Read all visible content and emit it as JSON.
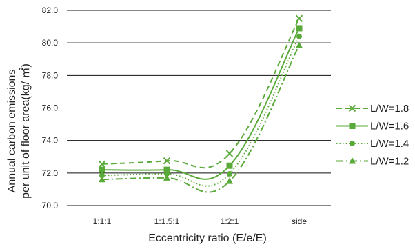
{
  "chart_data": {
    "type": "line",
    "categories": [
      "1:1:1",
      "1:1.5:1",
      "1:2:1",
      "side"
    ],
    "xlabel": "Eccentricity ratio (E/e/E)",
    "ylabel_lines": [
      "Annual carbon emissions",
      "per unit of floor area(kg/ ㎡)"
    ],
    "ylim": [
      70.0,
      82.0
    ],
    "yticks": [
      "70.0",
      "72.0",
      "74.0",
      "76.0",
      "78.0",
      "80.0",
      "82.0"
    ],
    "grid": "horizontal",
    "legend_position": "right",
    "color": "#5aaa3a",
    "series": [
      {
        "name": "L/W=1.8",
        "marker": "x",
        "dash": "dashed",
        "values": [
          72.55,
          72.75,
          73.2,
          81.5
        ]
      },
      {
        "name": "L/W=1.6",
        "marker": "square",
        "dash": "solid",
        "values": [
          72.2,
          72.2,
          72.45,
          80.9
        ]
      },
      {
        "name": "L/W=1.4",
        "marker": "circle",
        "dash": "dotted",
        "values": [
          71.85,
          71.95,
          71.95,
          80.4
        ]
      },
      {
        "name": "L/W=1.2",
        "marker": "triangle",
        "dash": "dashdot",
        "values": [
          71.6,
          71.7,
          71.5,
          79.85
        ]
      }
    ]
  }
}
